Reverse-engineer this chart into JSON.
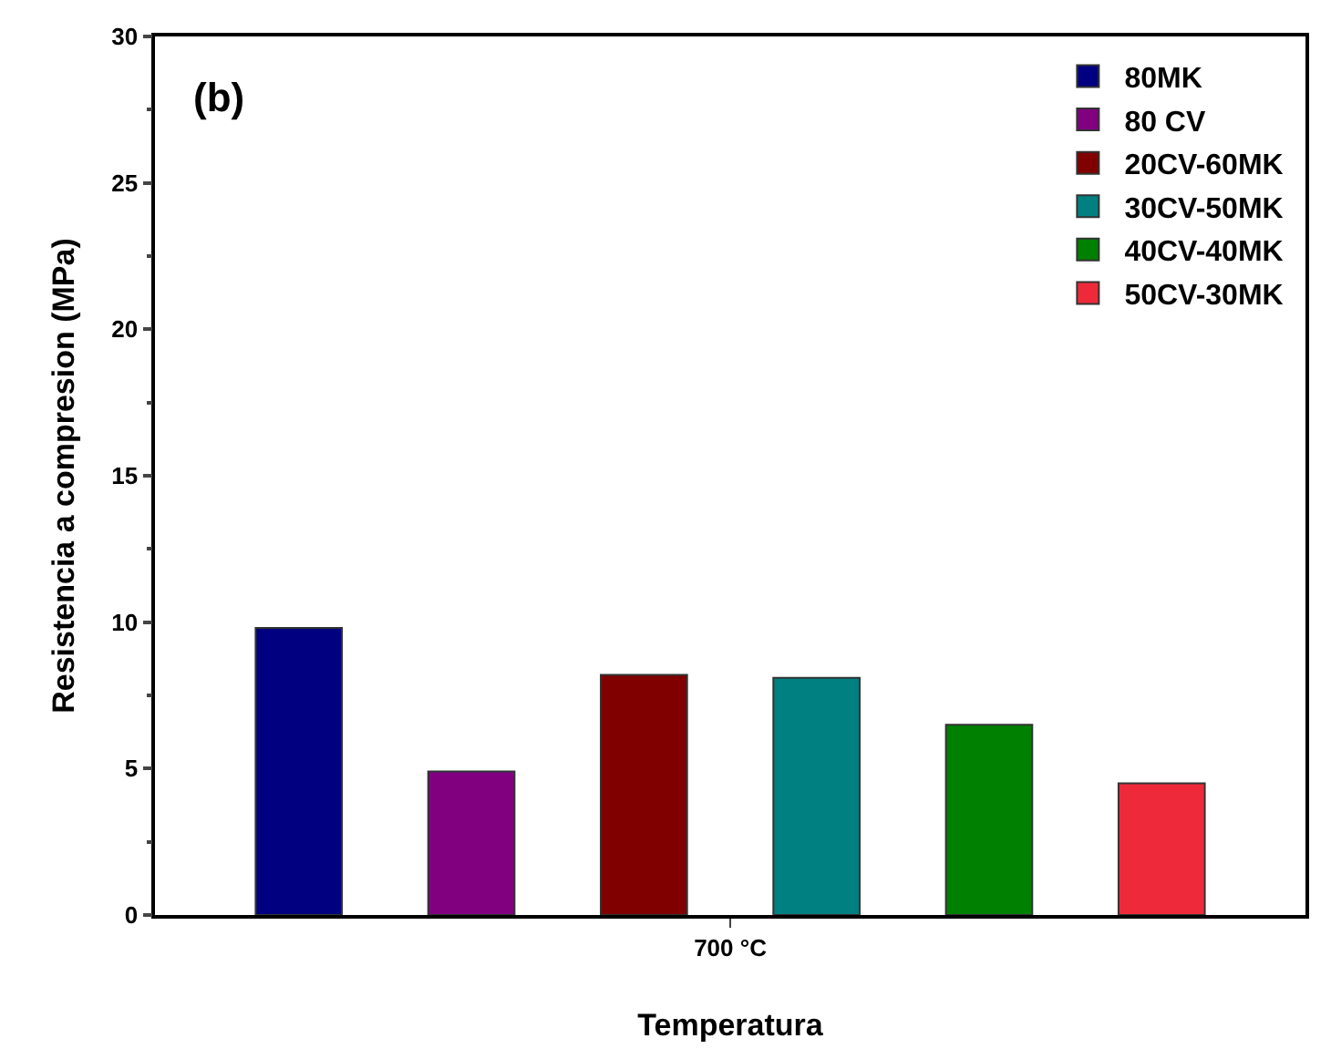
{
  "chart_data": {
    "type": "bar",
    "xlabel": "Temperatura",
    "ylabel": "Resistencia a compresion (MPa)",
    "categories": [
      "700 °C"
    ],
    "series": [
      {
        "name": "80MK",
        "color": "#000080",
        "values": [
          9.8
        ]
      },
      {
        "name": "80 CV",
        "color": "#800080",
        "values": [
          4.9
        ]
      },
      {
        "name": "20CV-60MK",
        "color": "#800000",
        "values": [
          8.2
        ]
      },
      {
        "name": "30CV-50MK",
        "color": "#008080",
        "values": [
          8.1
        ]
      },
      {
        "name": "40CV-40MK",
        "color": "#008000",
        "values": [
          6.5
        ]
      },
      {
        "name": "50CV-30MK",
        "color": "#ee2a3a",
        "values": [
          4.5
        ]
      }
    ],
    "ylim": [
      0,
      30
    ],
    "yticks": [
      0,
      5,
      10,
      15,
      20,
      25,
      30
    ],
    "annotations": [
      "(b)"
    ],
    "legend": "top right",
    "grid": false
  }
}
